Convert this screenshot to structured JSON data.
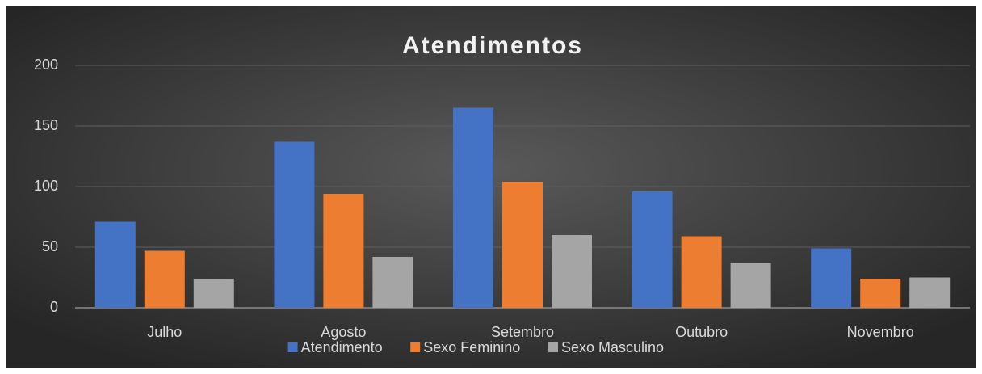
{
  "chart_data": {
    "type": "bar",
    "title": "Atendimentos",
    "categories": [
      "Julho",
      "Agosto",
      "Setembro",
      "Outubro",
      "Novembro"
    ],
    "series": [
      {
        "name": "Atendimento",
        "color": "#4472c4",
        "values": [
          71,
          137,
          165,
          96,
          49
        ]
      },
      {
        "name": "Sexo Feminino",
        "color": "#ed7d31",
        "values": [
          47,
          94,
          104,
          59,
          24
        ]
      },
      {
        "name": "Sexo Masculino",
        "color": "#a5a5a5",
        "values": [
          24,
          42,
          60,
          37,
          25
        ]
      }
    ],
    "ylim": [
      0,
      200
    ],
    "yticks": [
      0,
      50,
      100,
      150,
      200
    ],
    "grid": true,
    "legend": "bottom"
  }
}
